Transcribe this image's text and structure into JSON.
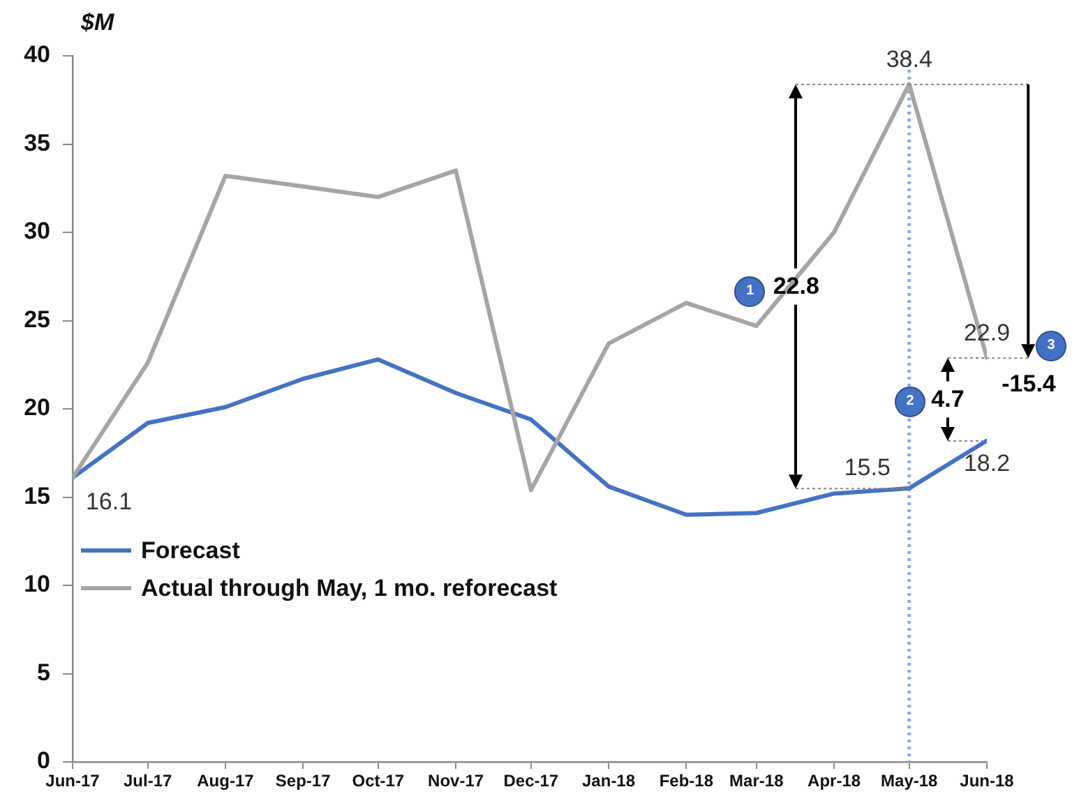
{
  "chart_data": {
    "type": "line",
    "ylabel": "$M",
    "x": [
      "2017-06",
      "2017-07",
      "2017-08",
      "2017-09",
      "2017-10",
      "2017-11",
      "2017-12",
      "2018-01",
      "2018-02",
      "2018-03",
      "2018-04",
      "2018-05",
      "2018-06"
    ],
    "series": [
      {
        "name": "Forecast",
        "color": "#4472c4",
        "values": [
          16.1,
          19.2,
          20.1,
          21.7,
          22.8,
          20.9,
          19.4,
          15.6,
          14.0,
          14.1,
          15.2,
          15.5,
          18.2
        ],
        "value_labels": [
          "16.1",
          null,
          null,
          null,
          null,
          null,
          null,
          null,
          null,
          null,
          null,
          "15.5",
          "18.2"
        ]
      },
      {
        "name": "Actual through May, 1 mo. reforecast",
        "color": "#a5a5a5",
        "values": [
          16.1,
          22.6,
          33.2,
          32.6,
          32.0,
          33.5,
          15.4,
          23.7,
          26.0,
          24.7,
          30.0,
          38.4,
          22.9
        ],
        "value_labels": [
          null,
          null,
          null,
          null,
          null,
          null,
          null,
          null,
          null,
          null,
          null,
          "38.4",
          "22.9"
        ]
      }
    ],
    "xlim": [
      "2017-06",
      "2018-06"
    ],
    "xticks": [
      {
        "value": "2017-06",
        "label": "Jun-17"
      },
      {
        "value": "2017-07",
        "label": "Jul-17"
      },
      {
        "value": "2017-08",
        "label": "Aug-17"
      },
      {
        "value": "2017-09",
        "label": "Sep-17"
      },
      {
        "value": "2017-10",
        "label": "Oct-17"
      },
      {
        "value": "2017-11",
        "label": "Nov-17"
      },
      {
        "value": "2017-12",
        "label": "Dec-17"
      },
      {
        "value": "2018-01",
        "label": "Jan-18"
      },
      {
        "value": "2018-02",
        "label": "Feb-18"
      },
      {
        "value": "2018-03",
        "label": "Mar-18"
      },
      {
        "value": "2018-04",
        "label": "Apr-18"
      },
      {
        "value": "2018-05",
        "label": "May-18"
      },
      {
        "value": "2018-06",
        "label": "Jun-18"
      }
    ],
    "ylim": [
      0,
      40
    ],
    "yticks": [
      0,
      5,
      10,
      15,
      20,
      25,
      30,
      35,
      40
    ],
    "legend": "left",
    "ref_lines": [
      {
        "axis": "x",
        "value": "2018-05",
        "color": "#8faadc",
        "line_style": "dotted"
      }
    ],
    "annotations": [
      "1",
      "22.8",
      "2",
      {
        "text": "4.7",
        "x": "2018-06",
        "y": 18.2
      },
      "3",
      "-15.4"
    ]
  }
}
